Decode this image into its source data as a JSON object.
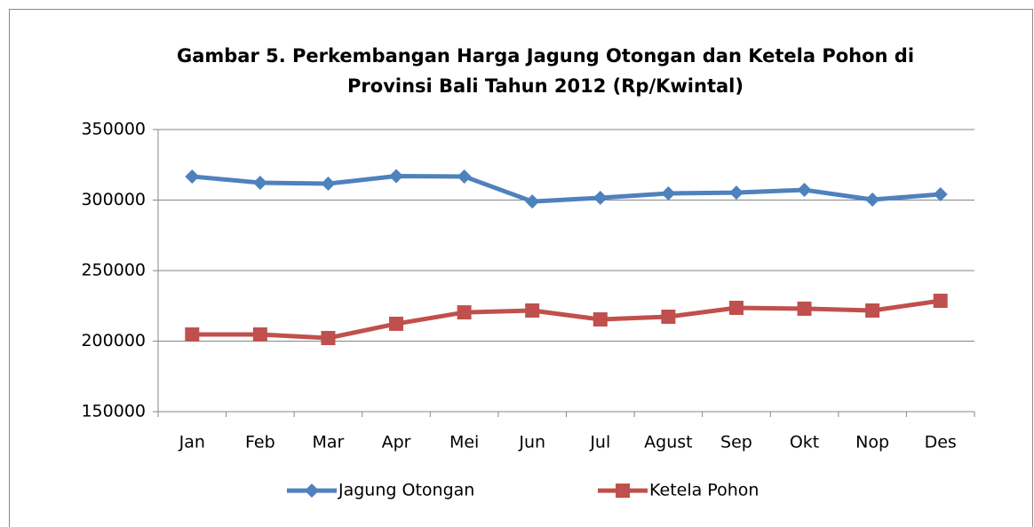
{
  "chart_data": {
    "type": "line",
    "title": "Gambar 5. Perkembangan Harga Jagung Otongan dan Ketela Pohon di",
    "subtitle": "Provinsi Bali Tahun 2012 (Rp/Kwintal)",
    "categories": [
      "Jan",
      "Feb",
      "Mar",
      "Apr",
      "Mei",
      "Jun",
      "Jul",
      "Agust",
      "Sep",
      "Okt",
      "Nop",
      "Des"
    ],
    "series": [
      {
        "name": "Jagung Otongan",
        "color": "#4f81bd",
        "marker": "diamond",
        "values": [
          316700,
          312300,
          311600,
          317000,
          316700,
          299000,
          301600,
          304700,
          305300,
          307200,
          300300,
          304100
        ]
      },
      {
        "name": "Ketela Pohon",
        "color": "#c0504d",
        "marker": "square",
        "values": [
          204700,
          204700,
          202200,
          212300,
          220400,
          221700,
          215400,
          217300,
          223600,
          223000,
          221700,
          228600
        ]
      }
    ],
    "ylim": [
      150000,
      350000
    ],
    "yticks": [
      150000,
      200000,
      250000,
      300000,
      350000
    ],
    "grid": true,
    "legend": "bottom"
  }
}
